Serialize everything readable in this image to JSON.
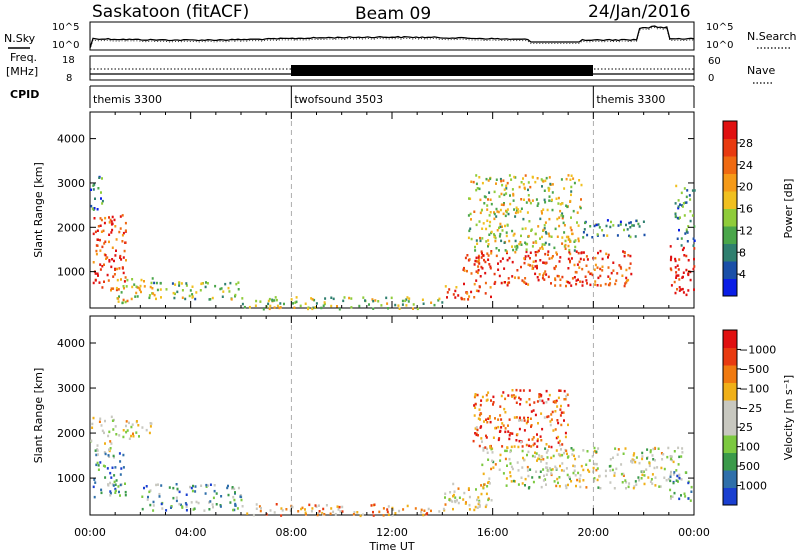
{
  "header": {
    "station": "Saskatoon (fitACF)",
    "beam": "Beam 09",
    "date": "24/Jan/2016"
  },
  "noise_panel": {
    "left_label": "N.Sky",
    "left_ticks": [
      "10^5",
      "10^0"
    ],
    "right_ticks": [
      "10^5",
      "10^0"
    ],
    "right_label": "N.Search"
  },
  "freq_panel": {
    "left_label_top": "Freq.",
    "left_label_bottom": "[MHz]",
    "left_ticks": [
      "18",
      "8"
    ],
    "right_ticks": [
      "60",
      "0"
    ],
    "right_label": "Nave"
  },
  "cpid": {
    "label": "CPID",
    "segments": [
      {
        "name": "themis 3300",
        "start_hour": 0
      },
      {
        "name": "twofsound 3503",
        "start_hour": 8
      },
      {
        "name": "themis 3300",
        "start_hour": 20
      }
    ]
  },
  "chart_data": [
    {
      "type": "heatmap",
      "name": "power",
      "ylabel": "Slant Range [km]",
      "y_ticks": [
        1000,
        2000,
        3000,
        4000
      ],
      "ylim": [
        180,
        4600
      ],
      "xlim_hours": [
        0,
        24
      ],
      "colorbar_label": "Power [dB]",
      "colorbar_ticks": [
        "4",
        "8",
        "12",
        "16",
        "20",
        "24",
        "28"
      ],
      "colorbar_colors": [
        "#0a1ee6",
        "#1a4fa8",
        "#2f7f6f",
        "#4aa64a",
        "#8fcc3a",
        "#f0c020",
        "#f59a18",
        "#ef6a12",
        "#e83a10",
        "#e01010"
      ],
      "regions": [
        {
          "x0": 0.1,
          "x1": 1.4,
          "y0": 600,
          "y1": 2300,
          "level": 0.85
        },
        {
          "x0": 0.0,
          "x1": 0.5,
          "y0": 2400,
          "y1": 3400,
          "level": 0.25
        },
        {
          "x0": 1.0,
          "x1": 2.5,
          "y0": 300,
          "y1": 900,
          "level": 0.55
        },
        {
          "x0": 2.5,
          "x1": 6.0,
          "y0": 400,
          "y1": 800,
          "level": 0.4
        },
        {
          "x0": 6.0,
          "x1": 14.0,
          "y0": 180,
          "y1": 450,
          "level": 0.45
        },
        {
          "x0": 14.0,
          "x1": 16.0,
          "y0": 400,
          "y1": 700,
          "level": 0.8
        },
        {
          "x0": 14.8,
          "x1": 21.5,
          "y0": 700,
          "y1": 1500,
          "level": 0.85
        },
        {
          "x0": 15.0,
          "x1": 19.5,
          "y0": 1500,
          "y1": 3200,
          "level": 0.5
        },
        {
          "x0": 19.5,
          "x1": 22.0,
          "y0": 1800,
          "y1": 2200,
          "level": 0.3
        },
        {
          "x0": 23.0,
          "x1": 24.0,
          "y0": 500,
          "y1": 1600,
          "level": 0.95
        },
        {
          "x0": 23.2,
          "x1": 24.0,
          "y0": 1600,
          "y1": 3000,
          "level": 0.3
        }
      ]
    },
    {
      "type": "heatmap",
      "name": "velocity",
      "ylabel": "Slant Range [km]",
      "y_ticks": [
        1000,
        2000,
        3000,
        4000
      ],
      "ylim": [
        180,
        4600
      ],
      "xlim_hours": [
        0,
        24
      ],
      "colorbar_label": "Velocity [m s⁻¹]",
      "colorbar_ticks": [
        "1000",
        "500",
        "100",
        "25",
        "−25",
        "−100",
        "−500",
        "−1000"
      ],
      "colorbar_colors": [
        "#1a3fd0",
        "#2f6faa",
        "#3a9a4a",
        "#7cc940",
        "#c8c8c0",
        "#c8c8c0",
        "#f0b018",
        "#f07a10",
        "#e83a10",
        "#e01010"
      ],
      "regions": [
        {
          "x0": 0.1,
          "x1": 1.4,
          "y0": 600,
          "y1": 1600,
          "level": 0.25
        },
        {
          "x0": 0.0,
          "x1": 1.0,
          "y0": 1600,
          "y1": 2400,
          "level": 0.5
        },
        {
          "x0": 1.0,
          "x1": 2.5,
          "y0": 1900,
          "y1": 2300,
          "level": 0.5
        },
        {
          "x0": 2.0,
          "x1": 6.0,
          "y0": 300,
          "y1": 900,
          "level": 0.3
        },
        {
          "x0": 6.0,
          "x1": 14.0,
          "y0": 180,
          "y1": 450,
          "level": 0.65
        },
        {
          "x0": 14.0,
          "x1": 16.0,
          "y0": 300,
          "y1": 900,
          "level": 0.55
        },
        {
          "x0": 15.5,
          "x1": 23.5,
          "y0": 800,
          "y1": 1700,
          "level": 0.5
        },
        {
          "x0": 15.2,
          "x1": 19.0,
          "y0": 1700,
          "y1": 3000,
          "level": 0.8
        },
        {
          "x0": 23.0,
          "x1": 24.0,
          "y0": 500,
          "y1": 1200,
          "level": 0.25
        }
      ]
    }
  ],
  "x_axis": {
    "ticks": [
      "00:00",
      "04:00",
      "08:00",
      "12:00",
      "16:00",
      "20:00",
      "00:00"
    ],
    "label": "Time UT"
  }
}
